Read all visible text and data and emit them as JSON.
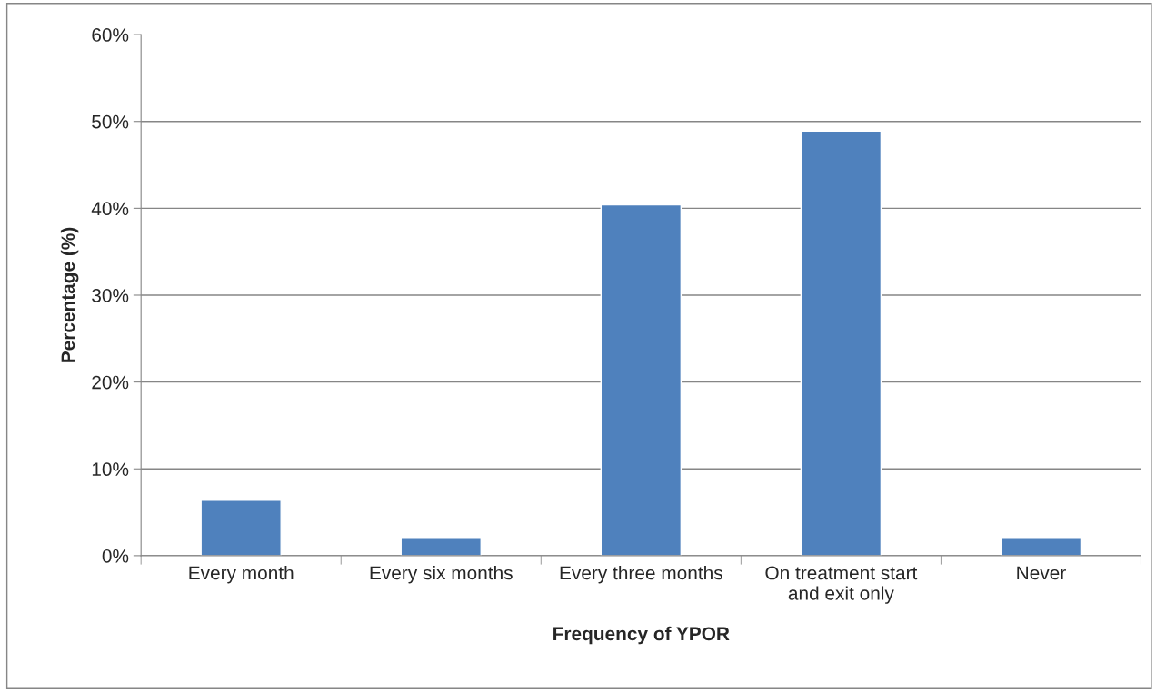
{
  "chart_data": {
    "type": "bar",
    "xlabel": "Frequency of YPOR",
    "ylabel": "Percentage (%)",
    "categories": [
      "Every month",
      "Every six months",
      "Every three months",
      "On treatment start\nand exit only",
      "Never"
    ],
    "values": [
      6.4,
      2.1,
      40.4,
      48.9,
      2.1
    ],
    "color": "#4f81bd",
    "ylim": [
      0,
      60
    ],
    "yticks": [
      {
        "value": 0,
        "label": "0%"
      },
      {
        "value": 10,
        "label": "10%"
      },
      {
        "value": 20,
        "label": "20%"
      },
      {
        "value": 30,
        "label": "30%"
      },
      {
        "value": 40,
        "label": "40%"
      },
      {
        "value": 50,
        "label": "50%"
      },
      {
        "value": 60,
        "label": "60%"
      }
    ],
    "grid": "y"
  }
}
